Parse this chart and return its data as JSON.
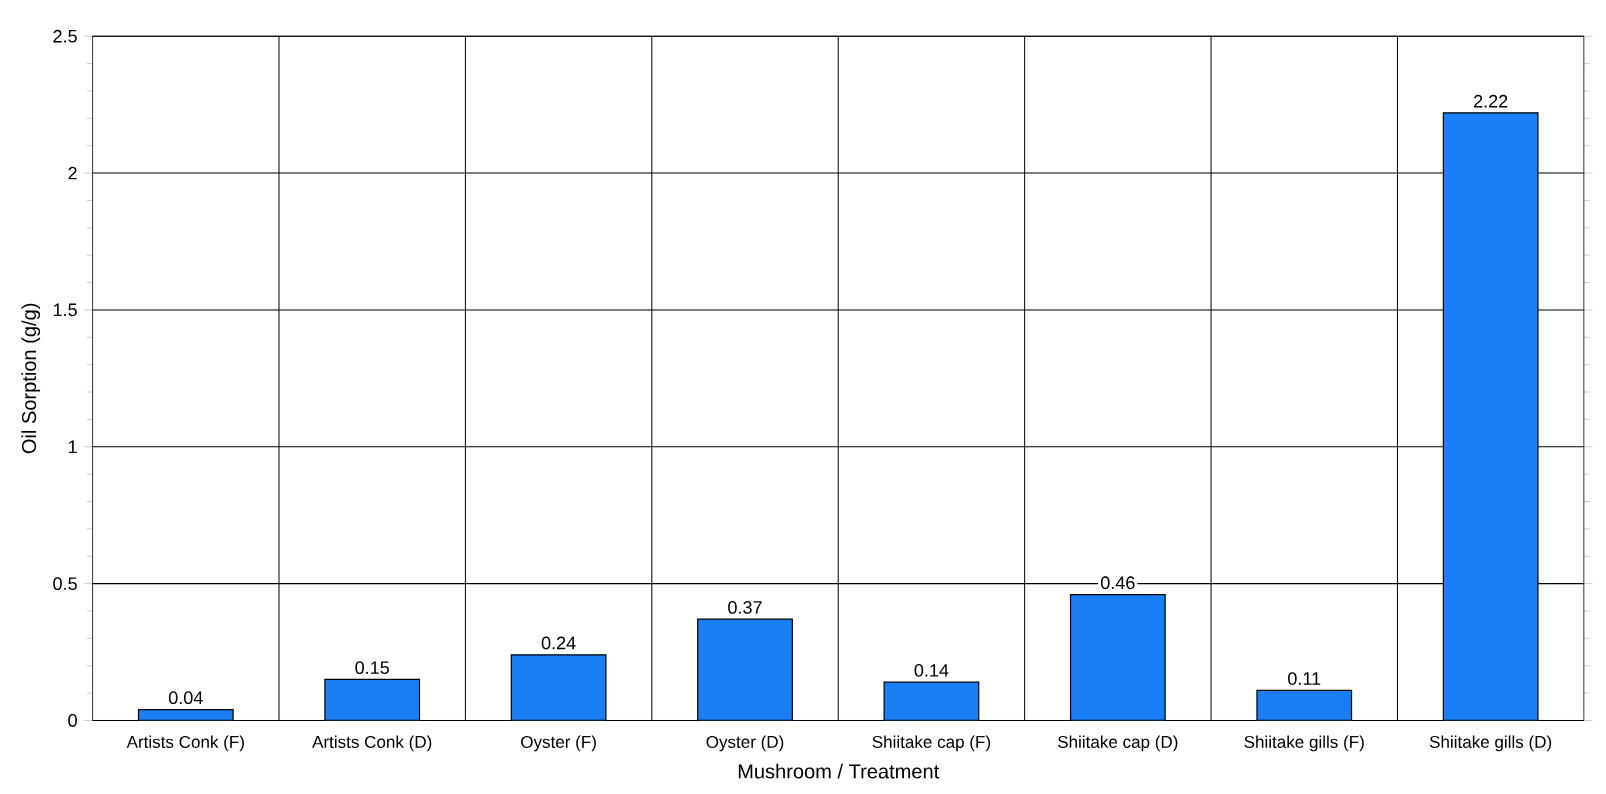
{
  "chart_data": {
    "type": "bar",
    "xlabel": "Mushroom / Treatment",
    "ylabel": "Oil Sorption (g/g)",
    "categories": [
      "Artists Conk (F)",
      "Artists Conk (D)",
      "Oyster (F)",
      "Oyster (D)",
      "Shiitake cap (F)",
      "Shiitake cap (D)",
      "Shiitake gills (F)",
      "Shiitake gills (D)"
    ],
    "values": [
      0.04,
      0.15,
      0.24,
      0.37,
      0.14,
      0.46,
      0.11,
      2.22
    ],
    "color": "#1a7ff5",
    "ylim": [
      0,
      2.5
    ],
    "yticks": [
      0,
      0.5,
      1,
      1.5,
      2,
      2.5
    ],
    "grid": true,
    "data_labels": true
  }
}
